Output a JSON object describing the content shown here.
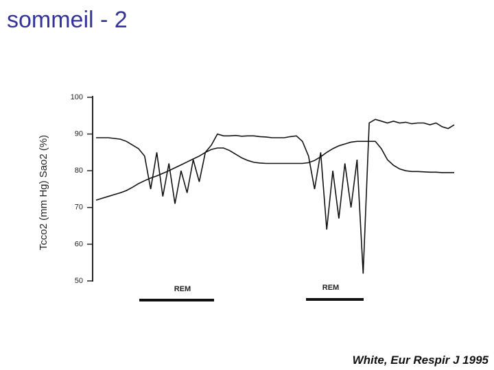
{
  "title": "sommeil - 2",
  "source": "White, Eur Respir J 1995",
  "chart_data": {
    "type": "line",
    "y_label": "Tcco2 (mm Hg) Sao2 (%)",
    "categories": [
      null,
      null,
      null,
      null,
      null,
      null,
      null,
      null,
      null,
      null,
      null,
      null,
      null,
      null,
      null,
      null,
      null,
      null,
      null,
      null,
      null,
      null,
      null,
      null,
      null,
      null,
      null,
      null,
      null,
      null,
      null,
      null,
      null,
      null,
      null,
      null,
      null,
      null,
      null,
      null,
      null,
      null,
      null,
      null,
      null,
      null,
      null,
      null,
      null,
      null,
      null,
      null,
      null,
      null,
      null,
      null,
      null,
      null,
      null,
      null
    ],
    "series": [
      {
        "color": "#111111",
        "values": [
          89,
          89,
          89,
          88.8,
          88.6,
          88,
          87,
          86,
          84,
          75,
          85,
          73,
          82,
          71,
          80,
          74,
          83,
          77,
          85,
          87,
          90,
          89.5,
          89.5,
          89.6,
          89.4,
          89.5,
          89.5,
          89.3,
          89.2,
          89,
          89,
          89,
          89.3,
          89.5,
          88,
          84,
          75,
          85,
          64,
          80,
          67,
          82,
          70,
          83,
          52,
          93,
          94,
          93.5,
          93,
          93.5,
          93,
          93.2,
          92.8,
          93,
          93,
          92.5,
          93,
          92,
          91.5,
          92.5
        ]
      },
      {
        "color": "#111111",
        "values": [
          72,
          72.5,
          73,
          73.5,
          74,
          74.6,
          75.5,
          76.5,
          77.3,
          78,
          78.6,
          79.3,
          80,
          80.8,
          81.6,
          82.4,
          83.2,
          84,
          85,
          85.8,
          86.2,
          86.2,
          85.5,
          84.5,
          83.5,
          82.8,
          82.3,
          82.1,
          82,
          82,
          82,
          82,
          82,
          82,
          82,
          82.2,
          82.8,
          83.8,
          85,
          86,
          86.8,
          87.3,
          87.8,
          88,
          88,
          88,
          88,
          86,
          83,
          81.5,
          80.5,
          80,
          79.8,
          79.8,
          79.7,
          79.6,
          79.6,
          79.5,
          79.5,
          79.5
        ]
      }
    ],
    "ylim": [
      50,
      100
    ],
    "yticks": [
      50,
      60,
      70,
      80,
      90,
      100
    ],
    "annotations": [
      "REM",
      "REM"
    ]
  }
}
